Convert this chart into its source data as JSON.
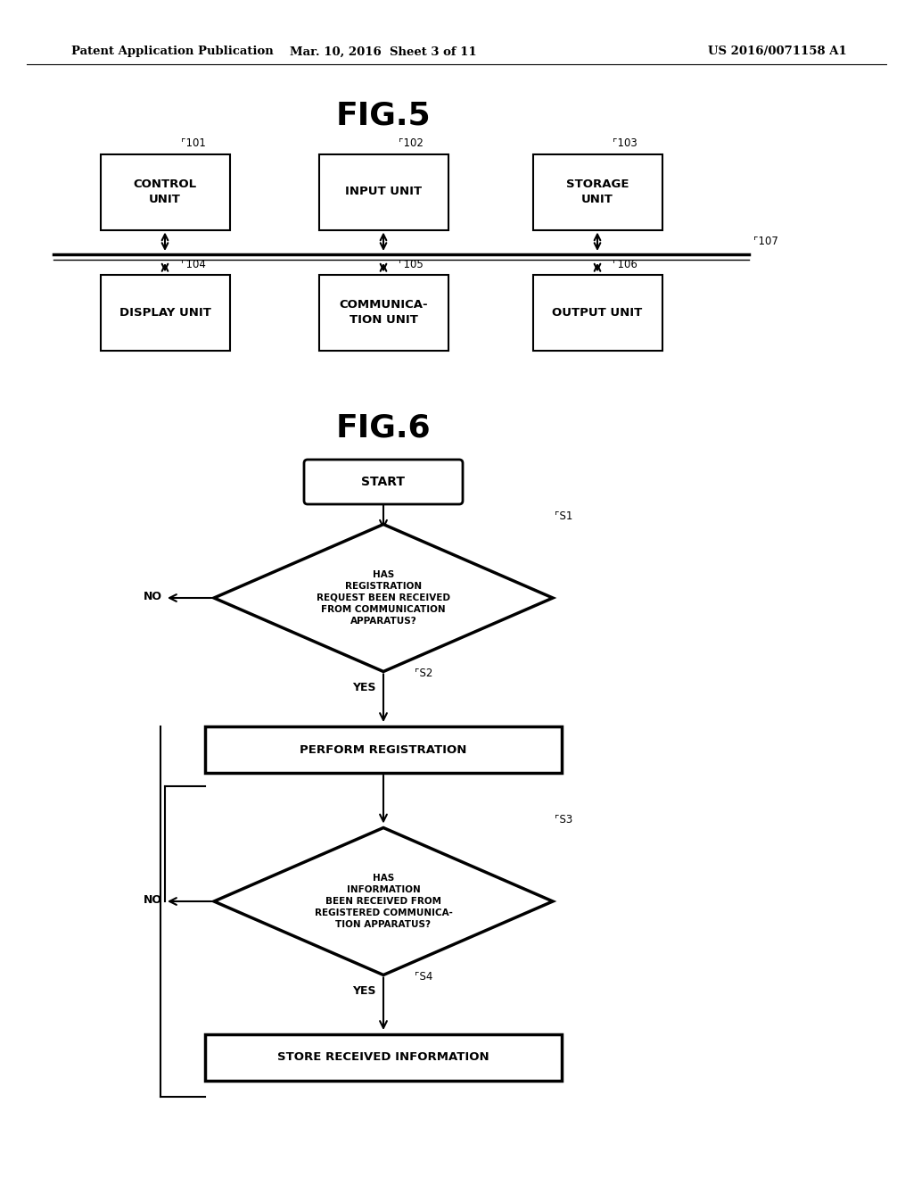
{
  "bg_color": "#ffffff",
  "header_left": "Patent Application Publication",
  "header_mid": "Mar. 10, 2016  Sheet 3 of 11",
  "header_right": "US 2016/0071158 A1",
  "fig5_title": "FIG.5",
  "fig6_title": "FIG.6",
  "start_label": "START",
  "s1_label": "HAS\nREGISTRATION\nREQUEST BEEN RECEIVED\nFROM COMMUNICATION\nAPPARATUS?",
  "s1_ref": "S1",
  "s2_label": "PERFORM REGISTRATION",
  "s2_ref": "S2",
  "s3_label": "HAS\nINFORMATION\nBEEN RECEIVED FROM\nREGISTERED COMMUNICA-\nTION APPARATUS?",
  "s3_ref": "S3",
  "s4_label": "STORE RECEIVED INFORMATION",
  "s4_ref": "S4",
  "yes_label": "YES",
  "no_label": "NO"
}
